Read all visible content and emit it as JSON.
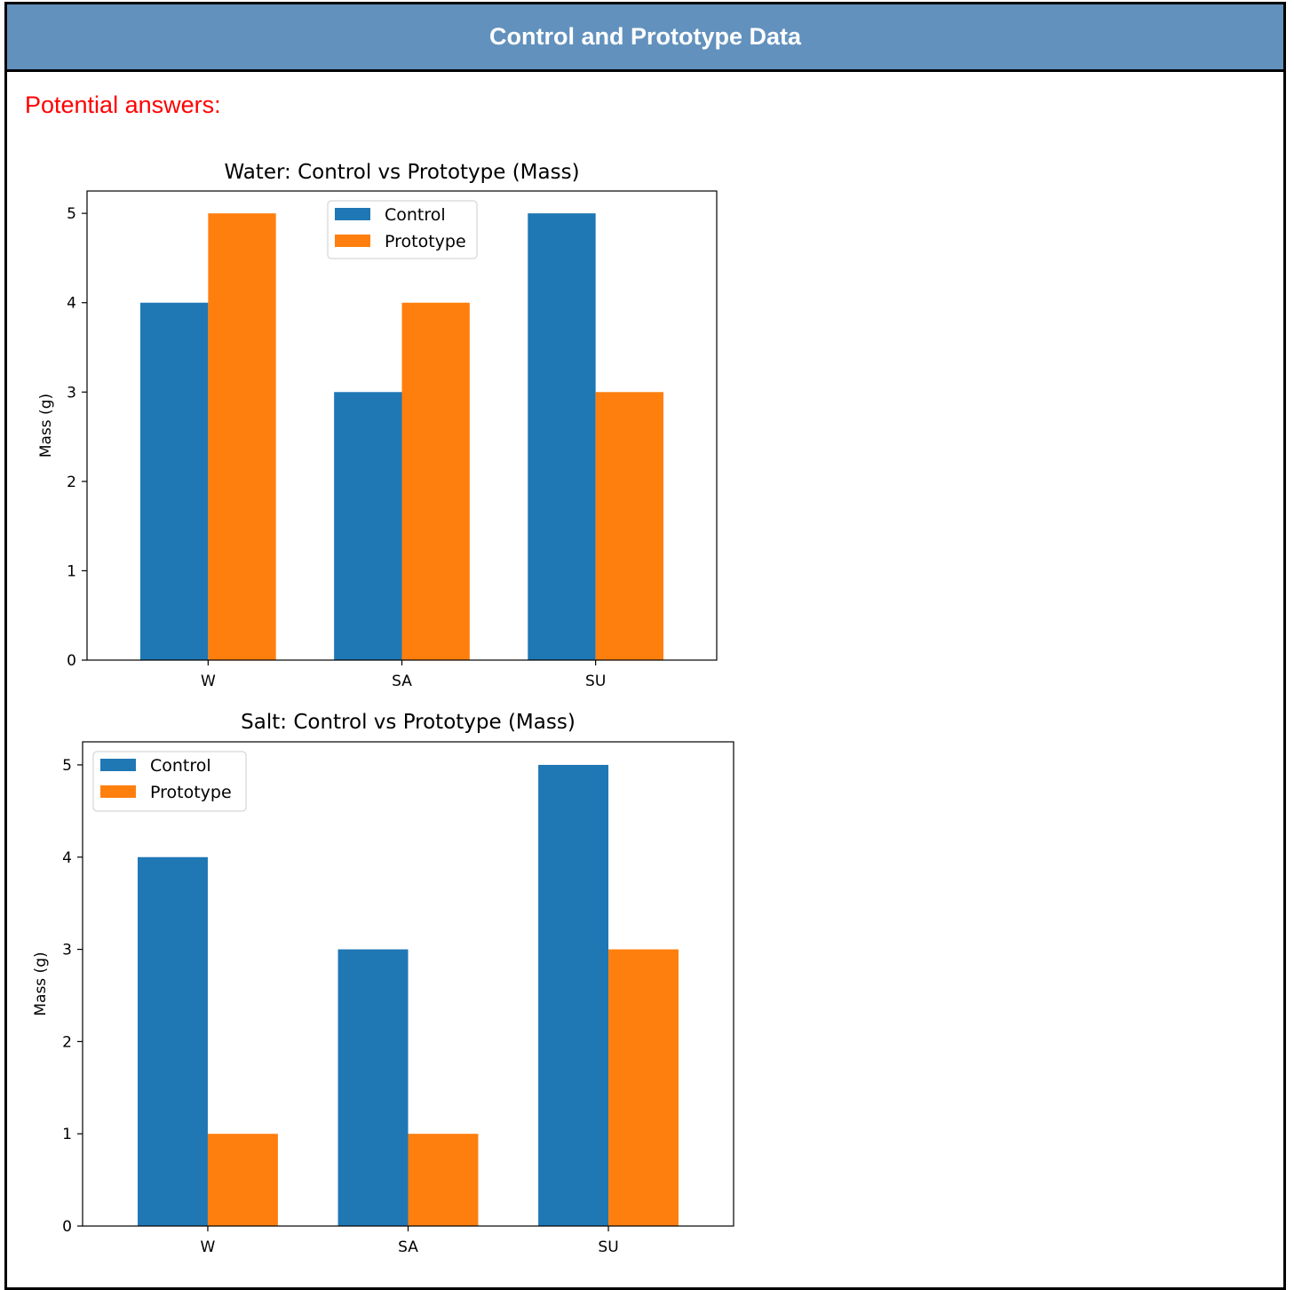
{
  "header": {
    "title": "Control and Prototype Data"
  },
  "subtitle": "Potential answers:",
  "chart_data": [
    {
      "type": "bar",
      "title": "Water: Control vs Prototype (Mass)",
      "xlabel": "",
      "ylabel": "Mass (g)",
      "categories": [
        "W",
        "SA",
        "SU"
      ],
      "series": [
        {
          "name": "Control",
          "values": [
            4,
            3,
            5
          ],
          "color": "#1f77b4"
        },
        {
          "name": "Prototype",
          "values": [
            5,
            4,
            3
          ],
          "color": "#ff7f0e"
        }
      ],
      "ylim": [
        0,
        5.25
      ],
      "yticks": [
        0,
        1,
        2,
        3,
        4,
        5
      ],
      "grid": false,
      "legend": "upper-center"
    },
    {
      "type": "bar",
      "title": "Salt: Control vs Prototype (Mass)",
      "xlabel": "",
      "ylabel": "Mass (g)",
      "categories": [
        "W",
        "SA",
        "SU"
      ],
      "series": [
        {
          "name": "Control",
          "values": [
            4,
            3,
            5
          ],
          "color": "#1f77b4"
        },
        {
          "name": "Prototype",
          "values": [
            1,
            1,
            3
          ],
          "color": "#ff7f0e"
        }
      ],
      "ylim": [
        0,
        5.25
      ],
      "yticks": [
        0,
        1,
        2,
        3,
        4,
        5
      ],
      "grid": false,
      "legend": "upper-left"
    }
  ]
}
